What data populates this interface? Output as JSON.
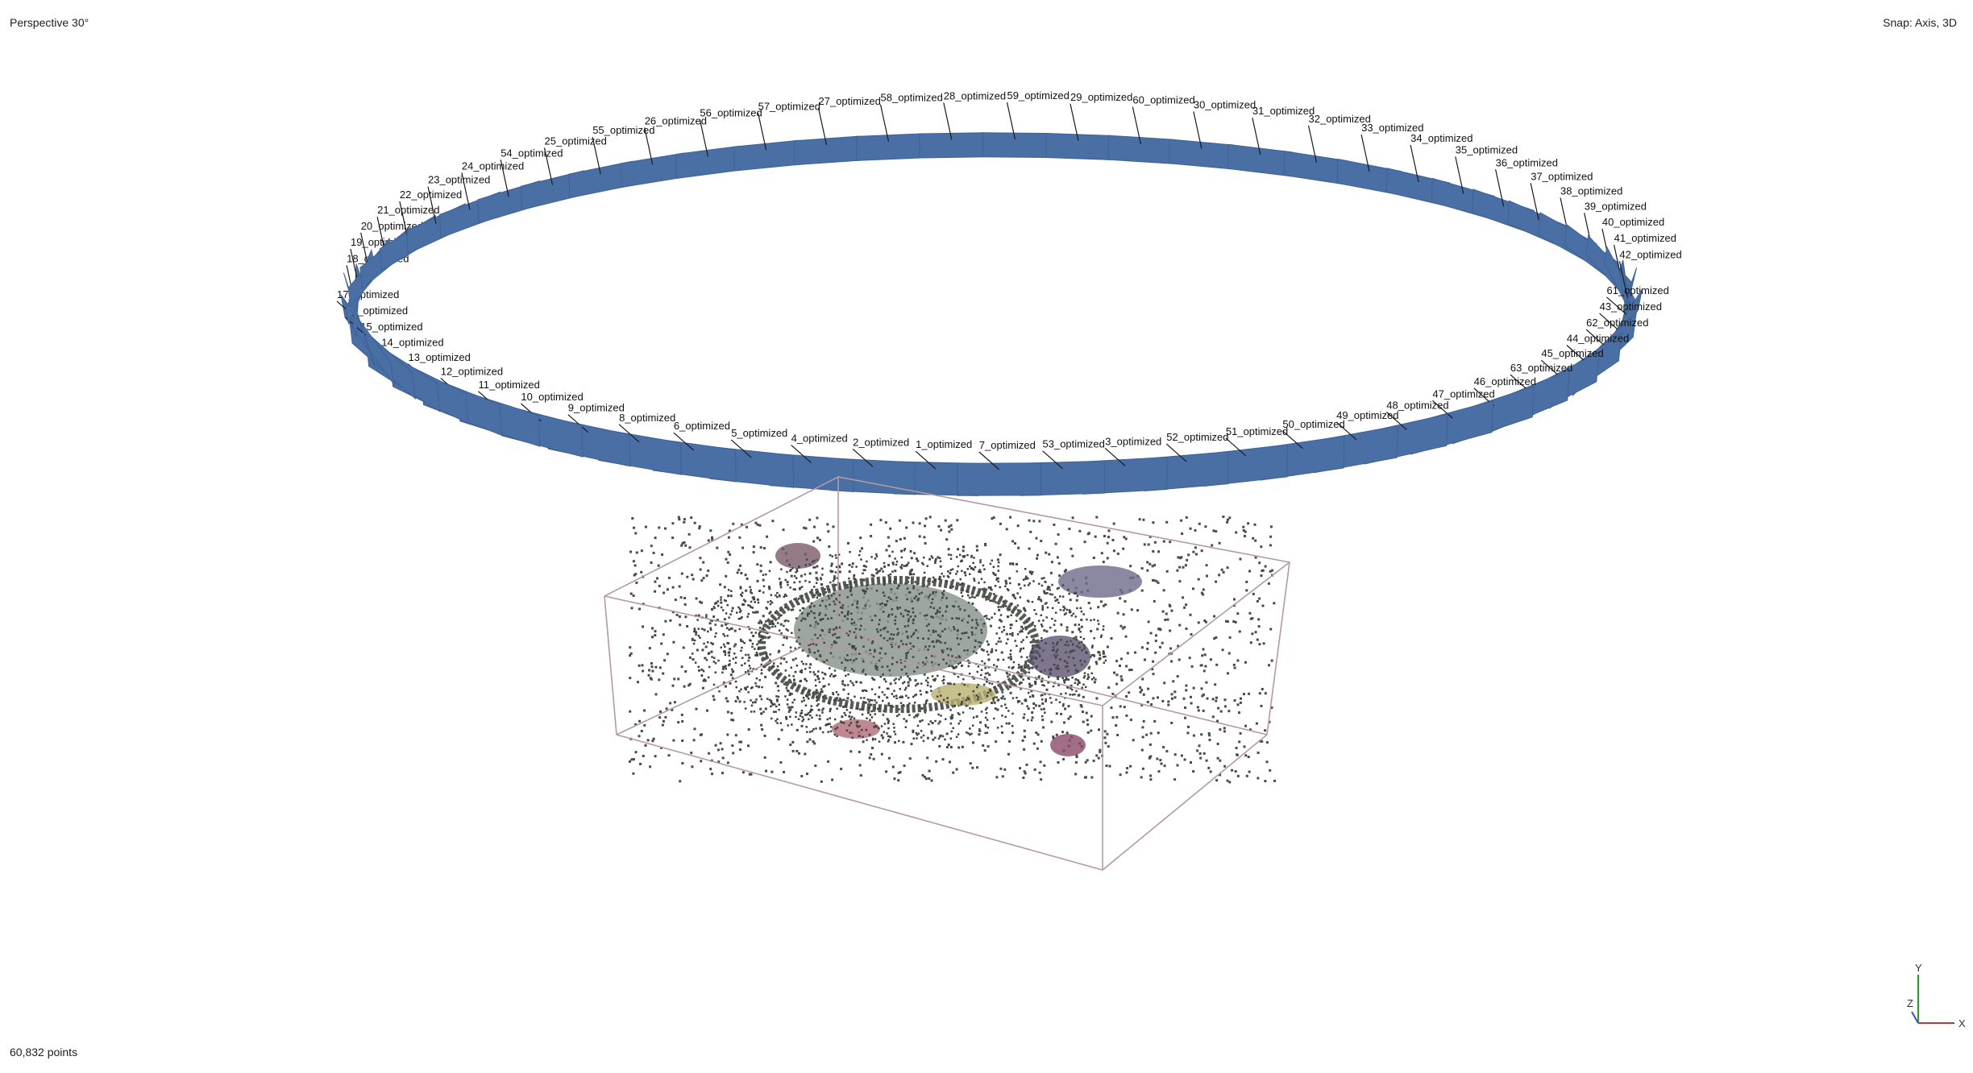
{
  "viewport": {
    "projection_label": "Perspective 30°",
    "snap_label": "Snap: Axis, 3D",
    "point_count_label": "60,832 points"
  },
  "axes": {
    "y": "Y",
    "z": "Z",
    "x": "X"
  },
  "colors": {
    "camera_plane": "#4a6fa5",
    "bounding_box": "#b49aa0",
    "points": "#4a4a4a",
    "background": "#ffffff"
  },
  "cameras": [
    "1_optimized",
    "2_optimized",
    "4_optimized",
    "5_optimized",
    "6_optimized",
    "8_optimized",
    "9_optimized",
    "10_optimized",
    "11_optimized",
    "12_optimized",
    "13_optimized",
    "14_optimized",
    "15_optimized",
    "16_optimized",
    "17_optimized",
    "18_optimized",
    "19_optimized",
    "20_optimized",
    "21_optimized",
    "22_optimized",
    "23_optimized",
    "24_optimized",
    "54_optimized",
    "25_optimized",
    "55_optimized",
    "26_optimized",
    "56_optimized",
    "57_optimized",
    "27_optimized",
    "58_optimized",
    "28_optimized",
    "59_optimized",
    "29_optimized",
    "60_optimized",
    "30_optimized",
    "31_optimized",
    "32_optimized",
    "33_optimized",
    "34_optimized",
    "35_optimized",
    "36_optimized",
    "37_optimized",
    "38_optimized",
    "39_optimized",
    "40_optimized",
    "41_optimized",
    "42_optimized",
    "61_optimized",
    "43_optimized",
    "62_optimized",
    "44_optimized",
    "45_optimized",
    "63_optimized",
    "46_optimized",
    "47_optimized",
    "48_optimized",
    "49_optimized",
    "50_optimized",
    "51_optimized",
    "52_optimized",
    "3_optimized",
    "53_optimized",
    "7_optimized"
  ]
}
